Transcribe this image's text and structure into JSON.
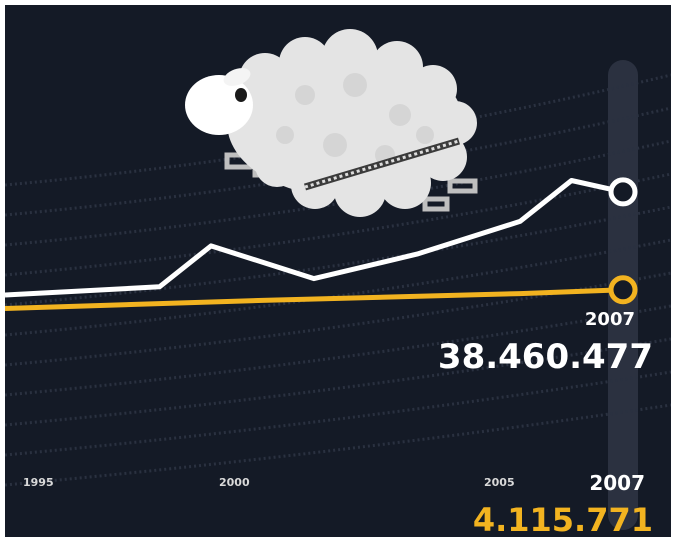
{
  "chart_data": {
    "type": "line",
    "x_ticks": [
      "1995",
      "2000",
      "2005",
      "2007"
    ],
    "xlim": [
      1995,
      2007
    ],
    "series": [
      {
        "color": "#ffffff",
        "x": [
          1995,
          1998,
          1999,
          2001,
          2003,
          2005,
          2006,
          2007
        ],
        "values": [
          37.2,
          37.3,
          37.8,
          37.4,
          37.7,
          38.1,
          38.6,
          38.46
        ],
        "ylim": [
          35.0,
          40.5
        ],
        "end_year": "2007",
        "end_value": "38.460.477"
      },
      {
        "color": "#f2b320",
        "x": [
          1995,
          2000,
          2005,
          2007
        ],
        "values": [
          3.7,
          3.88,
          4.03,
          4.115771
        ],
        "ylim": [
          0,
          10
        ],
        "end_year": "2007",
        "end_value": "4.115.771"
      }
    ],
    "highlight_year": 2007,
    "grid": true
  },
  "illustration": {
    "icon": "sheep-icon"
  },
  "colors": {
    "background": "#141a26",
    "highlight_band": "#2b3140",
    "grid": "#2a3140",
    "tick_text": "#d9d9d9"
  }
}
